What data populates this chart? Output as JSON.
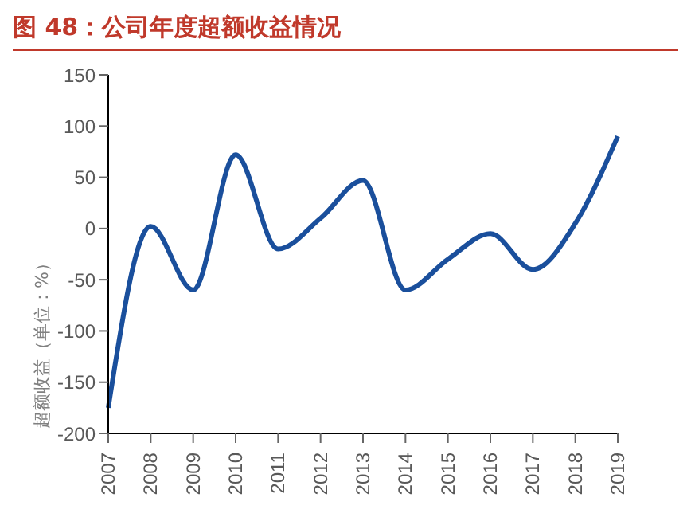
{
  "chart_data": {
    "type": "line",
    "title": "图 48：公司年度超额收益情况",
    "ylabel": "超额收益（单位：%）",
    "categories": [
      "2007",
      "2008",
      "2009",
      "2010",
      "2011",
      "2012",
      "2013",
      "2014",
      "2015",
      "2016",
      "2017",
      "2018",
      "2019"
    ],
    "series": [
      {
        "color": "#1a4f9c",
        "values": [
          -175,
          2,
          -60,
          72,
          -20,
          10,
          47,
          -60,
          -30,
          -5,
          -40,
          5,
          90
        ]
      }
    ],
    "ylim": [
      -200,
      150
    ],
    "yticks": [
      -200,
      -150,
      -100,
      -50,
      0,
      50,
      100,
      150
    ],
    "grid": false,
    "legend": false,
    "marker": "none",
    "line_style": "solid"
  }
}
